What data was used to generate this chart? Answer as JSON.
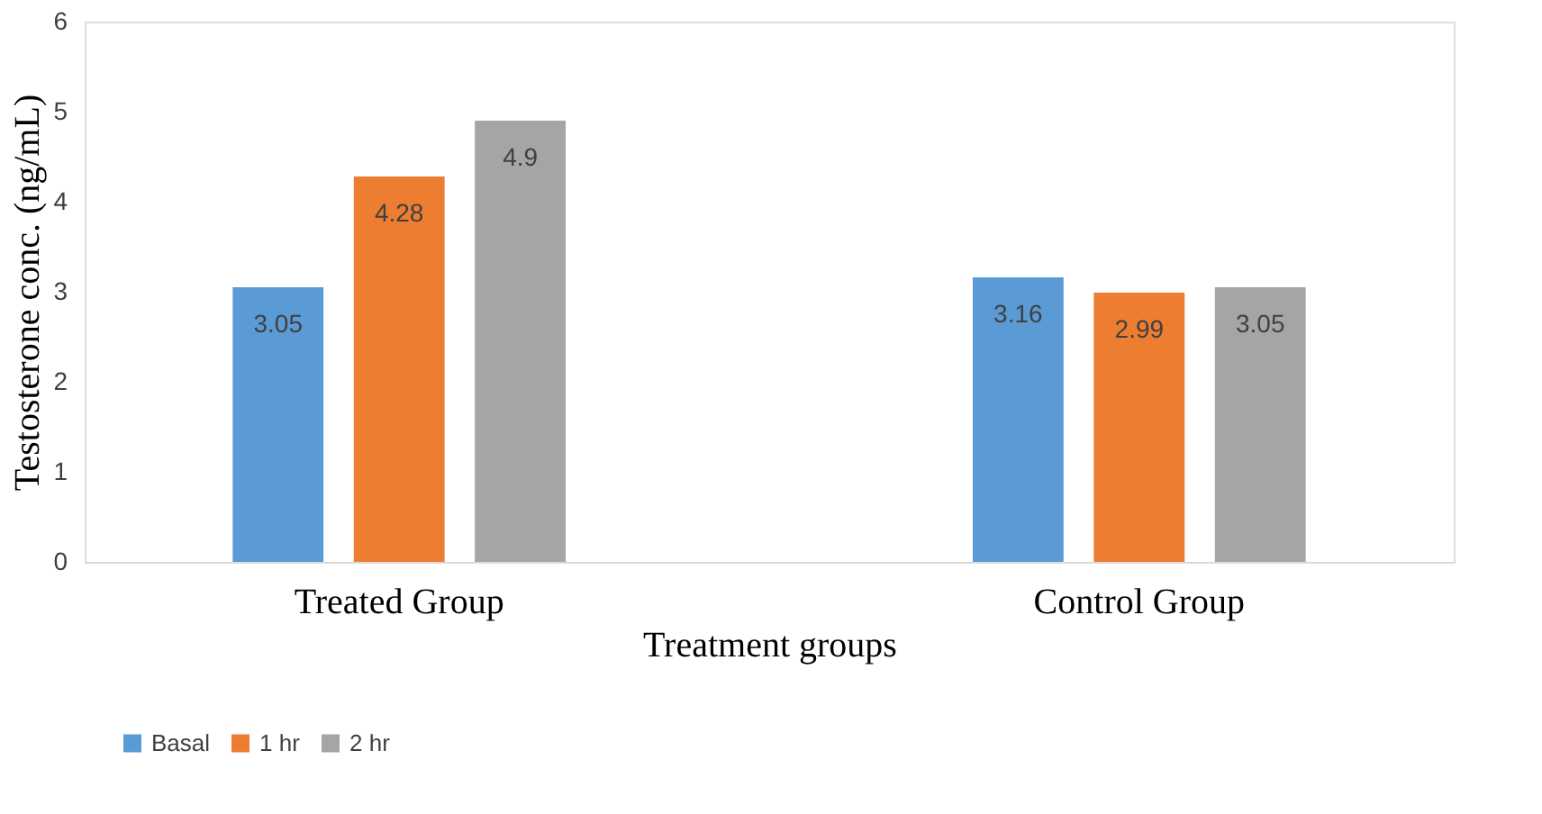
{
  "chart_data": {
    "type": "bar",
    "xlabel": "Treatment groups",
    "ylabel": "Testosterone conc. (ng/mL)",
    "categories": [
      "Treated Group",
      "Control Group"
    ],
    "series": [
      {
        "name": "Basal",
        "color": "#5b9bd5",
        "values": [
          3.05,
          3.16
        ]
      },
      {
        "name": "1 hr",
        "color": "#ed7d31",
        "values": [
          4.28,
          2.99
        ]
      },
      {
        "name": "2 hr",
        "color": "#a5a5a5",
        "values": [
          4.9,
          3.05
        ]
      }
    ],
    "ylim": [
      0,
      6
    ],
    "yticks": [
      0,
      1,
      2,
      3,
      4,
      5,
      6
    ],
    "grid": false,
    "legend": "bottom",
    "data_labels": true
  }
}
